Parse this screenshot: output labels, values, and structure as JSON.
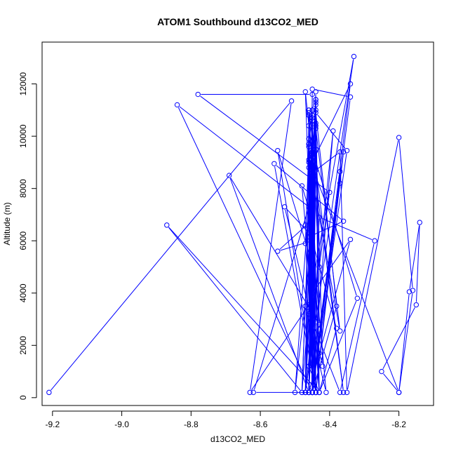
{
  "chart_data": {
    "type": "line",
    "title": "ATOM1 Southbound d13CO2_MED",
    "xlabel": "d13CO2_MED",
    "ylabel": "Altitude (m)",
    "xlim": [
      -9.23,
      -8.1
    ],
    "ylim": [
      -300,
      13600
    ],
    "x_ticks": [
      -9.2,
      -9.0,
      -8.8,
      -8.6,
      -8.4,
      -8.2
    ],
    "x_tick_labels": [
      "-9.2",
      "-9.0",
      "-8.8",
      "-8.6",
      "-8.4",
      "-8.2"
    ],
    "y_ticks": [
      0,
      2000,
      4000,
      6000,
      8000,
      10000,
      12000
    ],
    "y_tick_labels": [
      "0",
      "2000",
      "4000",
      "6000",
      "8000",
      "10000",
      "12000"
    ],
    "grid": false,
    "line_color": "#0000ff",
    "marker": "open-circle",
    "series": [
      {
        "x": [
          -9.21,
          -8.51,
          -8.63,
          -8.46,
          -8.45,
          -8.44,
          -8.45,
          -8.46,
          -8.44,
          -8.45,
          -8.45,
          -8.46,
          -8.43,
          -8.45,
          -8.45,
          -8.44,
          -8.43,
          -8.87,
          -8.48,
          -8.45,
          -8.46,
          -8.44,
          -8.45,
          -8.34,
          -8.45,
          -8.45,
          -8.46,
          -8.45,
          -8.44,
          -8.45,
          -8.45,
          -8.36,
          -8.46,
          -8.45,
          -8.38,
          -8.44,
          -8.35,
          -8.45,
          -8.46,
          -8.45,
          -8.44,
          -8.47,
          -8.46,
          -8.45,
          -8.62,
          -8.46,
          -8.45,
          -8.44,
          -8.45,
          -8.37,
          -8.44,
          -8.45,
          -8.46,
          -8.45,
          -8.44,
          -8.45,
          -8.46,
          -8.45,
          -8.43,
          -8.4,
          -8.78,
          -8.45,
          -8.46,
          -8.44,
          -8.42,
          -8.53,
          -8.46,
          -8.45,
          -8.44,
          -8.36,
          -8.43,
          -8.45,
          -8.46,
          -8.46,
          -8.45,
          -8.47,
          -8.46,
          -8.45,
          -8.48,
          -8.45,
          -8.44,
          -8.55,
          -8.45,
          -8.47,
          -8.46,
          -8.45,
          -8.44,
          -8.37,
          -8.35,
          -8.2,
          -8.16,
          -8.2,
          -8.25,
          -8.15,
          -8.14,
          -8.17,
          -8.2,
          -8.45,
          -8.44,
          -8.37,
          -8.37,
          -8.45,
          -8.46,
          -8.45,
          -8.44,
          -8.56,
          -8.36,
          -8.46,
          -8.45,
          -8.44,
          -8.5,
          -8.45,
          -8.41,
          -8.47,
          -8.48,
          -8.45,
          -8.46,
          -8.45,
          -8.37,
          -8.27,
          -8.43,
          -8.45,
          -8.46,
          -8.47,
          -8.44,
          -8.45,
          -8.47,
          -8.33,
          -8.45,
          -8.46,
          -8.69,
          -8.43,
          -8.44,
          -8.45,
          -8.39,
          -8.47,
          -8.45,
          -8.43,
          -8.45,
          -8.46,
          -8.45,
          -8.34,
          -8.45,
          -8.84,
          -8.46,
          -8.45,
          -8.46,
          -8.32,
          -8.43,
          -8.38,
          -8.45,
          -8.55,
          -8.45,
          -8.45,
          -8.46,
          -8.44,
          -8.43,
          -8.45,
          -8.34,
          -8.46,
          -8.45,
          -8.44,
          -8.45,
          -8.47,
          -8.45,
          -8.46
        ],
        "y": [
          200,
          11350,
          200,
          3550,
          2850,
          200,
          8600,
          11000,
          11200,
          200,
          9200,
          1200,
          200,
          8900,
          10600,
          2900,
          200,
          6600,
          200,
          10700,
          3200,
          9500,
          200,
          12000,
          9000,
          200,
          10800,
          3700,
          200,
          8700,
          9300,
          200,
          11000,
          200,
          3500,
          10900,
          9450,
          200,
          9000,
          7050,
          200,
          11700,
          10400,
          200,
          200,
          7300,
          6100,
          11400,
          8400,
          2550,
          10300,
          3100,
          200,
          9400,
          11300,
          3300,
          200,
          9800,
          5000,
          7850,
          11600,
          11600,
          200,
          10400,
          1200,
          7300,
          6300,
          3500,
          200,
          9400,
          2600,
          200,
          8800,
          3300,
          6500,
          200,
          9700,
          3600,
          8100,
          6800,
          200,
          9450,
          5100,
          200,
          10900,
          200,
          8700,
          9400,
          200,
          9950,
          4100,
          200,
          1000,
          3550,
          6700,
          4050,
          200,
          8800,
          200,
          8650,
          8200,
          200,
          9600,
          11000,
          200,
          8950,
          6750,
          6150,
          200,
          11000,
          200,
          6050,
          200,
          3500,
          200,
          5050,
          200,
          2900,
          200,
          6000,
          6900,
          200,
          9700,
          5900,
          200,
          10800,
          200,
          13050,
          4300,
          200,
          8500,
          2800,
          11400,
          200,
          10200,
          200,
          7000,
          1700,
          6000,
          200,
          11800,
          11500,
          200,
          11200,
          7300,
          200,
          9900,
          3800,
          200,
          2650,
          6000,
          5600,
          6800,
          200,
          9100,
          10500,
          200,
          4000,
          6050,
          200,
          8000,
          11700,
          3000,
          6600,
          7000,
          200
        ]
      }
    ]
  }
}
